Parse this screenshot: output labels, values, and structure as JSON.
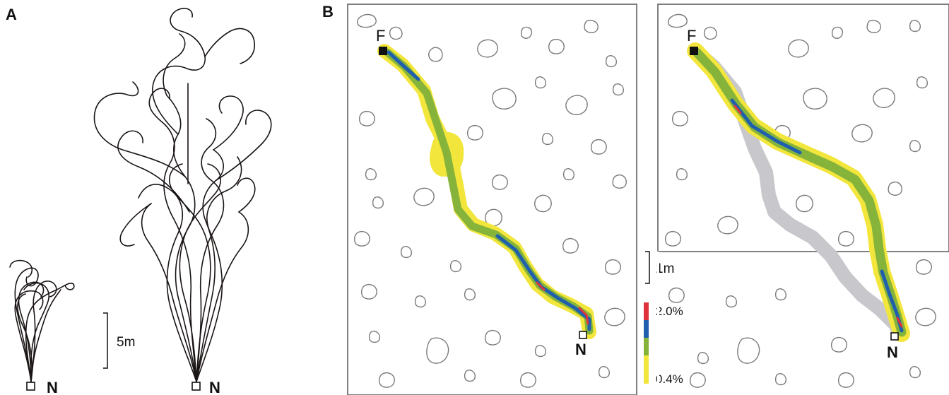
{
  "figure": {
    "panel_a": {
      "letter": "A",
      "nest_label": "N",
      "scale_label": "5m",
      "colors": {
        "track": "#1a1414"
      }
    },
    "panel_b": {
      "letter": "B",
      "food_label": "F",
      "nest_label": "N",
      "scale_label": "1m",
      "legend": {
        "max_label": "2.0%",
        "min_label": "0.4%",
        "colors": [
          "#e0323c",
          "#1f5fae",
          "#86b43a",
          "#f2e63c"
        ]
      },
      "colors": {
        "reference_route": "#c8c8cc",
        "obstacle": "#7a7a7a"
      }
    }
  }
}
